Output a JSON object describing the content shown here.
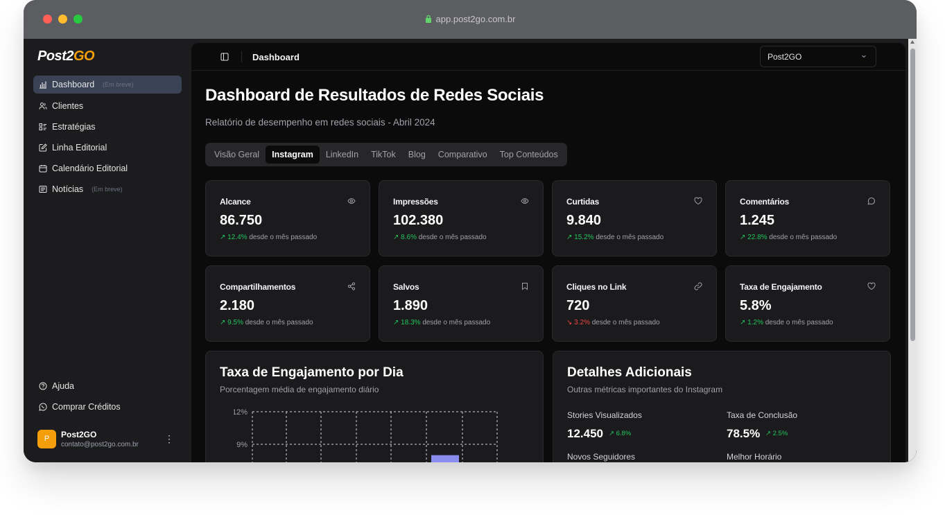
{
  "browser": {
    "url": "app.post2go.com.br"
  },
  "sidebar": {
    "logo_main": "Post2",
    "logo_accent": "GO",
    "items": [
      {
        "label": "Dashboard",
        "badge": "(Em breve)",
        "icon": "chart-icon"
      },
      {
        "label": "Clientes",
        "icon": "users-icon"
      },
      {
        "label": "Estratégias",
        "icon": "list-icon"
      },
      {
        "label": "Linha Editorial",
        "icon": "edit-icon"
      },
      {
        "label": "Calendário Editorial",
        "icon": "calendar-icon"
      },
      {
        "label": "Notícias",
        "badge": "(Em breve)",
        "icon": "newspaper-icon"
      }
    ],
    "footer": [
      {
        "label": "Ajuda",
        "icon": "help-icon"
      },
      {
        "label": "Comprar Créditos",
        "icon": "whatsapp-icon"
      }
    ],
    "user": {
      "initial": "P",
      "name": "Post2GO",
      "email": "contato@post2go.com.br"
    }
  },
  "topbar": {
    "breadcrumb": "Dashboard",
    "select_value": "Post2GO"
  },
  "page": {
    "title": "Dashboard de Resultados de Redes Sociais",
    "subtitle": "Relatório de desempenho em redes sociais - Abril 2024",
    "tabs": [
      "Visão Geral",
      "Instagram",
      "LinkedIn",
      "TikTok",
      "Blog",
      "Comparativo",
      "Top Conteúdos"
    ],
    "active_tab": "Instagram"
  },
  "metrics": [
    {
      "label": "Alcance",
      "value": "86.750",
      "change": "12.4%",
      "trend": "up",
      "suffix": "desde o mês passado",
      "icon": "eye-icon"
    },
    {
      "label": "Impressões",
      "value": "102.380",
      "change": "8.6%",
      "trend": "up",
      "suffix": "desde o mês passado",
      "icon": "eye-icon"
    },
    {
      "label": "Curtidas",
      "value": "9.840",
      "change": "15.2%",
      "trend": "up",
      "suffix": "desde o mês passado",
      "icon": "heart-icon"
    },
    {
      "label": "Comentários",
      "value": "1.245",
      "change": "22.8%",
      "trend": "up",
      "suffix": "desde o mês passado",
      "icon": "comment-icon"
    },
    {
      "label": "Compartilhamentos",
      "value": "2.180",
      "change": "9.5%",
      "trend": "up",
      "suffix": "desde o mês passado",
      "icon": "share-icon"
    },
    {
      "label": "Salvos",
      "value": "1.890",
      "change": "18.3%",
      "trend": "up",
      "suffix": "desde o mês passado",
      "icon": "bookmark-icon"
    },
    {
      "label": "Cliques no Link",
      "value": "720",
      "change": "3.2%",
      "trend": "down",
      "suffix": "desde o mês passado",
      "icon": "link-icon"
    },
    {
      "label": "Taxa de Engajamento",
      "value": "5.8%",
      "change": "1.2%",
      "trend": "up",
      "suffix": "desde o mês passado",
      "icon": "heart-icon"
    }
  ],
  "engagement_panel": {
    "title": "Taxa de Engajamento por Dia",
    "subtitle": "Porcentagem média de engajamento diário"
  },
  "chart_data": {
    "type": "bar",
    "title": "Taxa de Engajamento por Dia",
    "ytick_labels": [
      "12%",
      "9%"
    ],
    "ylim": [
      0,
      12
    ],
    "grid": "dashed",
    "visible_bars": [
      {
        "value": 8
      }
    ],
    "bar_color": "#8b8cf0"
  },
  "details_panel": {
    "title": "Detalhes Adicionais",
    "subtitle": "Outras métricas importantes do Instagram",
    "items": [
      {
        "label": "Stories Visualizados",
        "value": "12.450",
        "change": "6.8%"
      },
      {
        "label": "Taxa de Conclusão",
        "value": "78.5%",
        "change": "2.5%"
      },
      {
        "label": "Novos Seguidores"
      },
      {
        "label": "Melhor Horário"
      }
    ]
  }
}
